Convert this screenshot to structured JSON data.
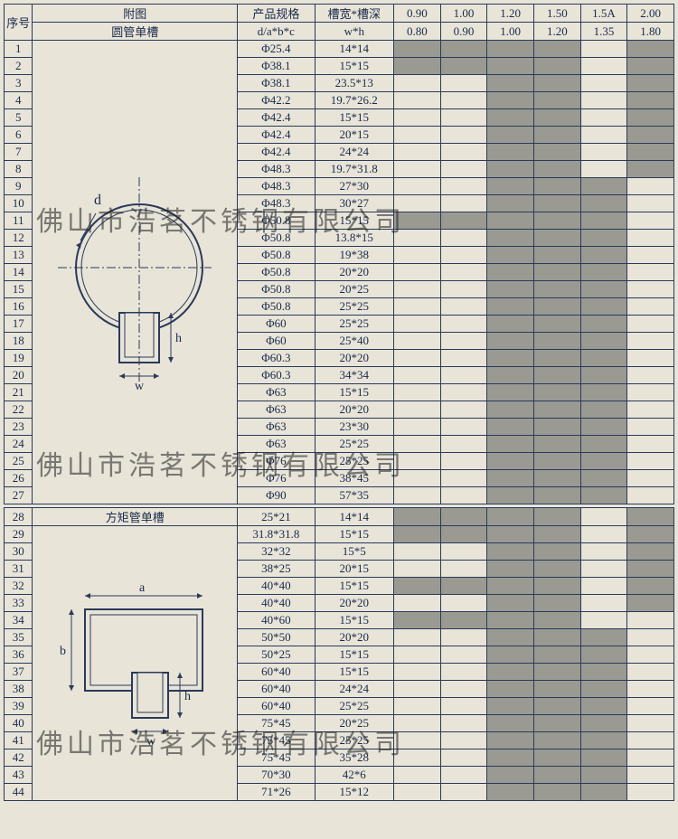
{
  "headers": {
    "seq": "序号",
    "diagram_top": "附图",
    "diagram_sub1": "圆管单槽",
    "diagram_sub2": "方矩管单槽",
    "spec_top": "产品规格",
    "spec_sub": "d/a*b*c",
    "wh_top": "槽宽*槽深",
    "wh_sub": "w*h",
    "cols_top": [
      "0.90",
      "1.00",
      "1.20",
      "1.50",
      "1.5A",
      "2.00"
    ],
    "cols_sub": [
      "0.80",
      "0.90",
      "1.00",
      "1.20",
      "1.35",
      "1.80"
    ]
  },
  "table1": [
    {
      "n": "1",
      "spec": "Φ25.4",
      "wh": "14*14",
      "s": [
        1,
        1,
        1,
        1,
        0,
        1
      ]
    },
    {
      "n": "2",
      "spec": "Φ38.1",
      "wh": "15*15",
      "s": [
        1,
        1,
        1,
        1,
        0,
        1
      ]
    },
    {
      "n": "3",
      "spec": "Φ38.1",
      "wh": "23.5*13",
      "s": [
        0,
        0,
        1,
        1,
        0,
        1
      ]
    },
    {
      "n": "4",
      "spec": "Φ42.2",
      "wh": "19.7*26.2",
      "s": [
        0,
        0,
        1,
        1,
        0,
        1
      ]
    },
    {
      "n": "5",
      "spec": "Φ42.4",
      "wh": "15*15",
      "s": [
        0,
        0,
        1,
        1,
        0,
        1
      ]
    },
    {
      "n": "6",
      "spec": "Φ42.4",
      "wh": "20*15",
      "s": [
        0,
        0,
        1,
        1,
        0,
        1
      ]
    },
    {
      "n": "7",
      "spec": "Φ42.4",
      "wh": "24*24",
      "s": [
        0,
        0,
        1,
        1,
        0,
        1
      ]
    },
    {
      "n": "8",
      "spec": "Φ48.3",
      "wh": "19.7*31.8",
      "s": [
        0,
        0,
        1,
        1,
        0,
        1
      ]
    },
    {
      "n": "9",
      "spec": "Φ48.3",
      "wh": "27*30",
      "s": [
        0,
        0,
        1,
        1,
        1,
        0
      ]
    },
    {
      "n": "10",
      "spec": "Φ48.3",
      "wh": "30*27",
      "s": [
        0,
        0,
        1,
        1,
        1,
        0
      ]
    },
    {
      "n": "11",
      "spec": "Φ50.8",
      "wh": "15*15",
      "s": [
        1,
        1,
        1,
        1,
        1,
        0
      ]
    },
    {
      "n": "12",
      "spec": "Φ50.8",
      "wh": "13.8*15",
      "s": [
        0,
        0,
        1,
        1,
        1,
        0
      ]
    },
    {
      "n": "13",
      "spec": "Φ50.8",
      "wh": "19*38",
      "s": [
        0,
        0,
        1,
        1,
        1,
        0
      ]
    },
    {
      "n": "14",
      "spec": "Φ50.8",
      "wh": "20*20",
      "s": [
        0,
        0,
        1,
        1,
        1,
        0
      ]
    },
    {
      "n": "15",
      "spec": "Φ50.8",
      "wh": "20*25",
      "s": [
        0,
        0,
        1,
        1,
        1,
        0
      ]
    },
    {
      "n": "16",
      "spec": "Φ50.8",
      "wh": "25*25",
      "s": [
        0,
        0,
        1,
        1,
        1,
        0
      ]
    },
    {
      "n": "17",
      "spec": "Φ60",
      "wh": "25*25",
      "s": [
        0,
        0,
        1,
        1,
        1,
        0
      ]
    },
    {
      "n": "18",
      "spec": "Φ60",
      "wh": "25*40",
      "s": [
        0,
        0,
        1,
        1,
        1,
        0
      ]
    },
    {
      "n": "19",
      "spec": "Φ60.3",
      "wh": "20*20",
      "s": [
        0,
        0,
        1,
        1,
        1,
        0
      ]
    },
    {
      "n": "20",
      "spec": "Φ60.3",
      "wh": "34*34",
      "s": [
        0,
        0,
        1,
        1,
        1,
        0
      ]
    },
    {
      "n": "21",
      "spec": "Φ63",
      "wh": "15*15",
      "s": [
        0,
        0,
        1,
        1,
        1,
        0
      ]
    },
    {
      "n": "22",
      "spec": "Φ63",
      "wh": "20*20",
      "s": [
        0,
        0,
        1,
        1,
        1,
        0
      ]
    },
    {
      "n": "23",
      "spec": "Φ63",
      "wh": "23*30",
      "s": [
        0,
        0,
        1,
        1,
        1,
        0
      ]
    },
    {
      "n": "24",
      "spec": "Φ63",
      "wh": "25*25",
      "s": [
        0,
        0,
        1,
        1,
        1,
        0
      ]
    },
    {
      "n": "25",
      "spec": "Φ76",
      "wh": "25*25",
      "s": [
        0,
        0,
        1,
        1,
        1,
        0
      ]
    },
    {
      "n": "26",
      "spec": "Φ76",
      "wh": "38*45",
      "s": [
        0,
        0,
        1,
        1,
        1,
        0
      ]
    },
    {
      "n": "27",
      "spec": "Φ90",
      "wh": "57*35",
      "s": [
        0,
        0,
        1,
        1,
        1,
        0
      ]
    }
  ],
  "table2": [
    {
      "n": "28",
      "spec": "25*21",
      "wh": "14*14",
      "s": [
        1,
        1,
        1,
        1,
        0,
        1
      ]
    },
    {
      "n": "29",
      "spec": "31.8*31.8",
      "wh": "15*15",
      "s": [
        1,
        1,
        1,
        1,
        0,
        1
      ]
    },
    {
      "n": "30",
      "spec": "32*32",
      "wh": "15*5",
      "s": [
        0,
        0,
        1,
        1,
        0,
        1
      ]
    },
    {
      "n": "31",
      "spec": "38*25",
      "wh": "20*15",
      "s": [
        0,
        0,
        1,
        1,
        0,
        1
      ]
    },
    {
      "n": "32",
      "spec": "40*40",
      "wh": "15*15",
      "s": [
        1,
        1,
        1,
        1,
        0,
        1
      ]
    },
    {
      "n": "33",
      "spec": "40*40",
      "wh": "20*20",
      "s": [
        0,
        0,
        1,
        1,
        0,
        1
      ]
    },
    {
      "n": "34",
      "spec": "40*60",
      "wh": "15*15",
      "s": [
        1,
        1,
        1,
        1,
        0,
        0
      ]
    },
    {
      "n": "35",
      "spec": "50*50",
      "wh": "20*20",
      "s": [
        0,
        0,
        1,
        1,
        1,
        0
      ]
    },
    {
      "n": "36",
      "spec": "50*25",
      "wh": "15*15",
      "s": [
        0,
        0,
        1,
        1,
        1,
        0
      ]
    },
    {
      "n": "37",
      "spec": "60*40",
      "wh": "15*15",
      "s": [
        0,
        0,
        1,
        1,
        1,
        0
      ]
    },
    {
      "n": "38",
      "spec": "60*40",
      "wh": "24*24",
      "s": [
        0,
        0,
        1,
        1,
        1,
        0
      ]
    },
    {
      "n": "39",
      "spec": "60*40",
      "wh": "25*25",
      "s": [
        0,
        0,
        1,
        1,
        1,
        0
      ]
    },
    {
      "n": "40",
      "spec": "75*45",
      "wh": "20*25",
      "s": [
        0,
        0,
        1,
        1,
        1,
        0
      ]
    },
    {
      "n": "41",
      "spec": "75*45",
      "wh": "25*25",
      "s": [
        0,
        0,
        1,
        1,
        1,
        0
      ]
    },
    {
      "n": "42",
      "spec": "75*45",
      "wh": "35*28",
      "s": [
        0,
        0,
        1,
        1,
        1,
        0
      ]
    },
    {
      "n": "43",
      "spec": "70*30",
      "wh": "42*6",
      "s": [
        0,
        0,
        1,
        1,
        1,
        0
      ]
    },
    {
      "n": "44",
      "spec": "71*26",
      "wh": "15*12",
      "s": [
        0,
        0,
        1,
        1,
        1,
        0
      ]
    }
  ],
  "watermark": "佛山市浩茗不锈钢有限公司",
  "diagram1": {
    "d_label": "d",
    "w_label": "w",
    "h_label": "h"
  },
  "diagram2": {
    "a_label": "a",
    "b_label": "b",
    "w_label": "w",
    "h_label": "h"
  },
  "colors": {
    "border": "#2a3a5a",
    "bg": "#e8e4d8",
    "shade": "#9a9a92"
  }
}
